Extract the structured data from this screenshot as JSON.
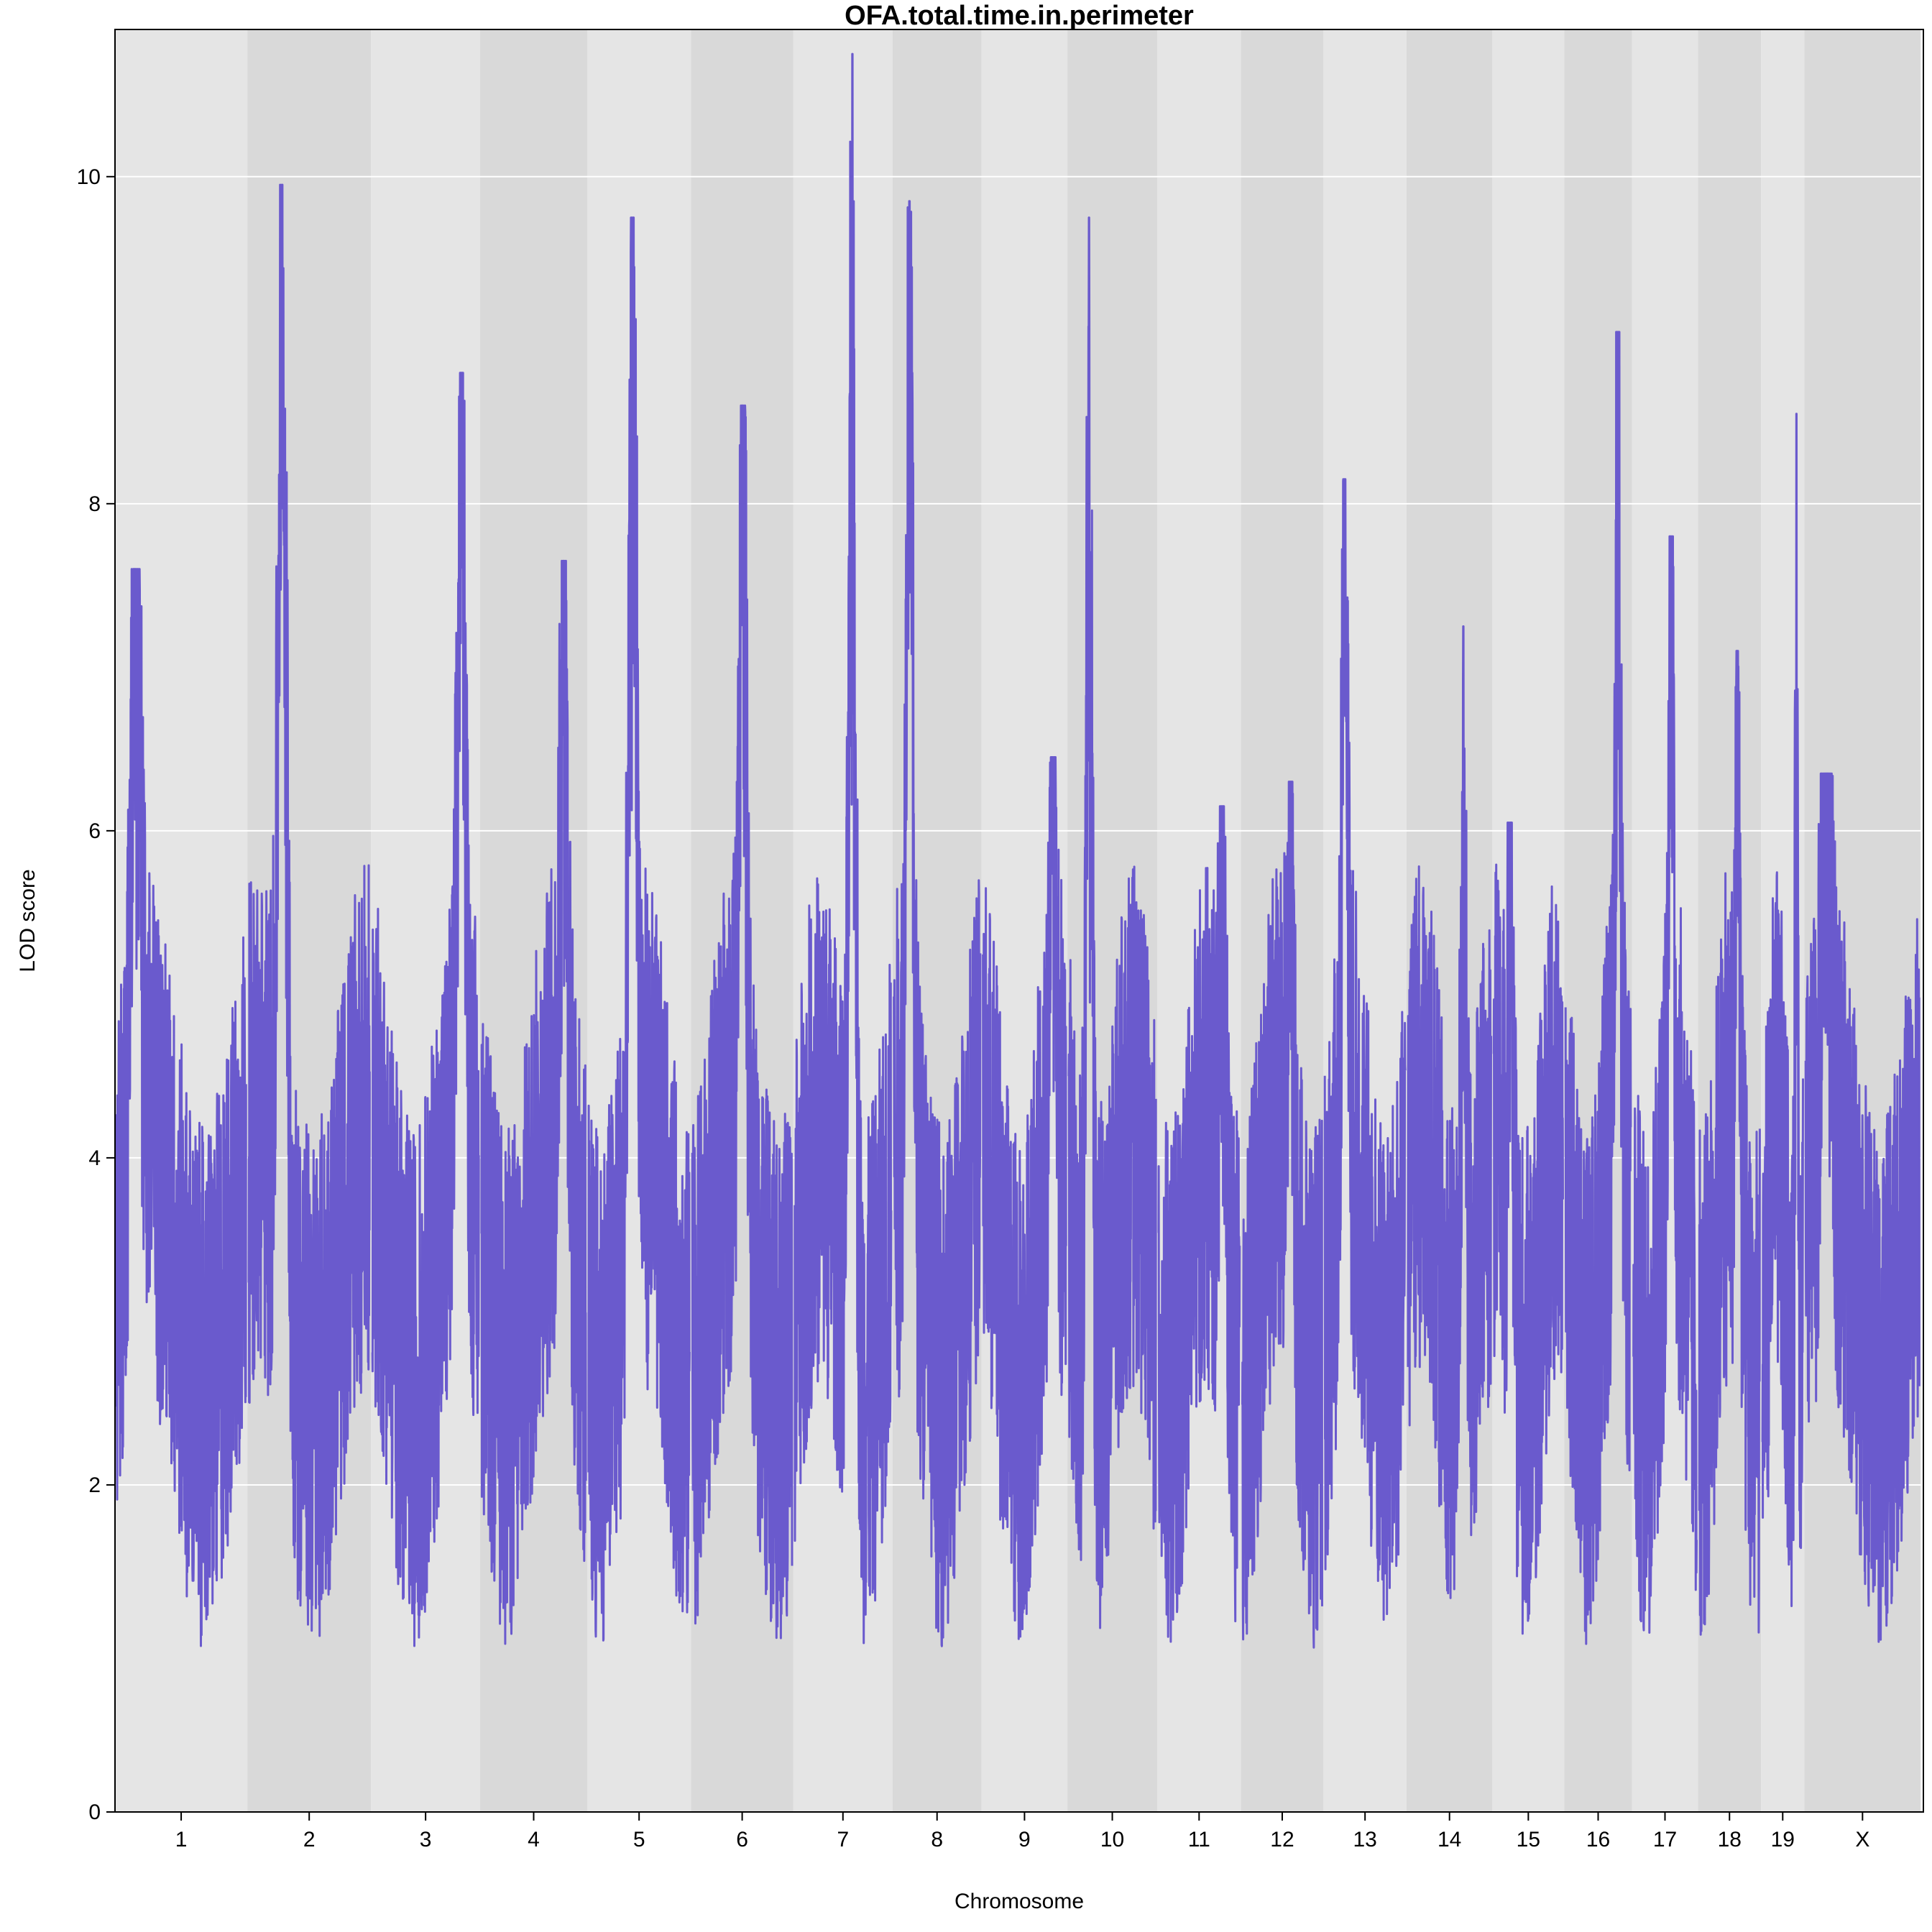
{
  "chart_data": {
    "type": "line",
    "title": "OFA.total.time.in.perimeter",
    "xlabel": "Chromosome",
    "ylabel": "LOD score",
    "ylim": [
      0,
      10.9
    ],
    "yticks": [
      0,
      2,
      4,
      6,
      8,
      10
    ],
    "grid": true,
    "line_color": "#6A5ACD",
    "band_colors": [
      "#E5E5E5",
      "#D9D9D9"
    ],
    "chromosomes": [
      {
        "name": "1",
        "length": 195,
        "peak": 7.6
      },
      {
        "name": "2",
        "length": 182,
        "peak": 9.95
      },
      {
        "name": "3",
        "length": 160,
        "peak": 8.8
      },
      {
        "name": "4",
        "length": 157,
        "peak": 7.65
      },
      {
        "name": "5",
        "length": 152,
        "peak": 9.75
      },
      {
        "name": "6",
        "length": 150,
        "peak": 8.6
      },
      {
        "name": "7",
        "length": 145,
        "peak": 10.75
      },
      {
        "name": "8",
        "length": 130,
        "peak": 9.85
      },
      {
        "name": "9",
        "length": 125,
        "peak": 6.45
      },
      {
        "name": "10",
        "length": 131,
        "peak": 9.75
      },
      {
        "name": "11",
        "length": 122,
        "peak": 6.15
      },
      {
        "name": "12",
        "length": 120,
        "peak": 6.3
      },
      {
        "name": "13",
        "length": 121,
        "peak": 8.15
      },
      {
        "name": "14",
        "length": 125,
        "peak": 7.25
      },
      {
        "name": "15",
        "length": 104,
        "peak": 6.05
      },
      {
        "name": "16",
        "length": 98,
        "peak": 9.05
      },
      {
        "name": "17",
        "length": 95,
        "peak": 7.8
      },
      {
        "name": "18",
        "length": 91,
        "peak": 7.1
      },
      {
        "name": "19",
        "length": 61,
        "peak": 8.55
      },
      {
        "name": "X",
        "length": 171,
        "peak": 6.35
      }
    ]
  }
}
